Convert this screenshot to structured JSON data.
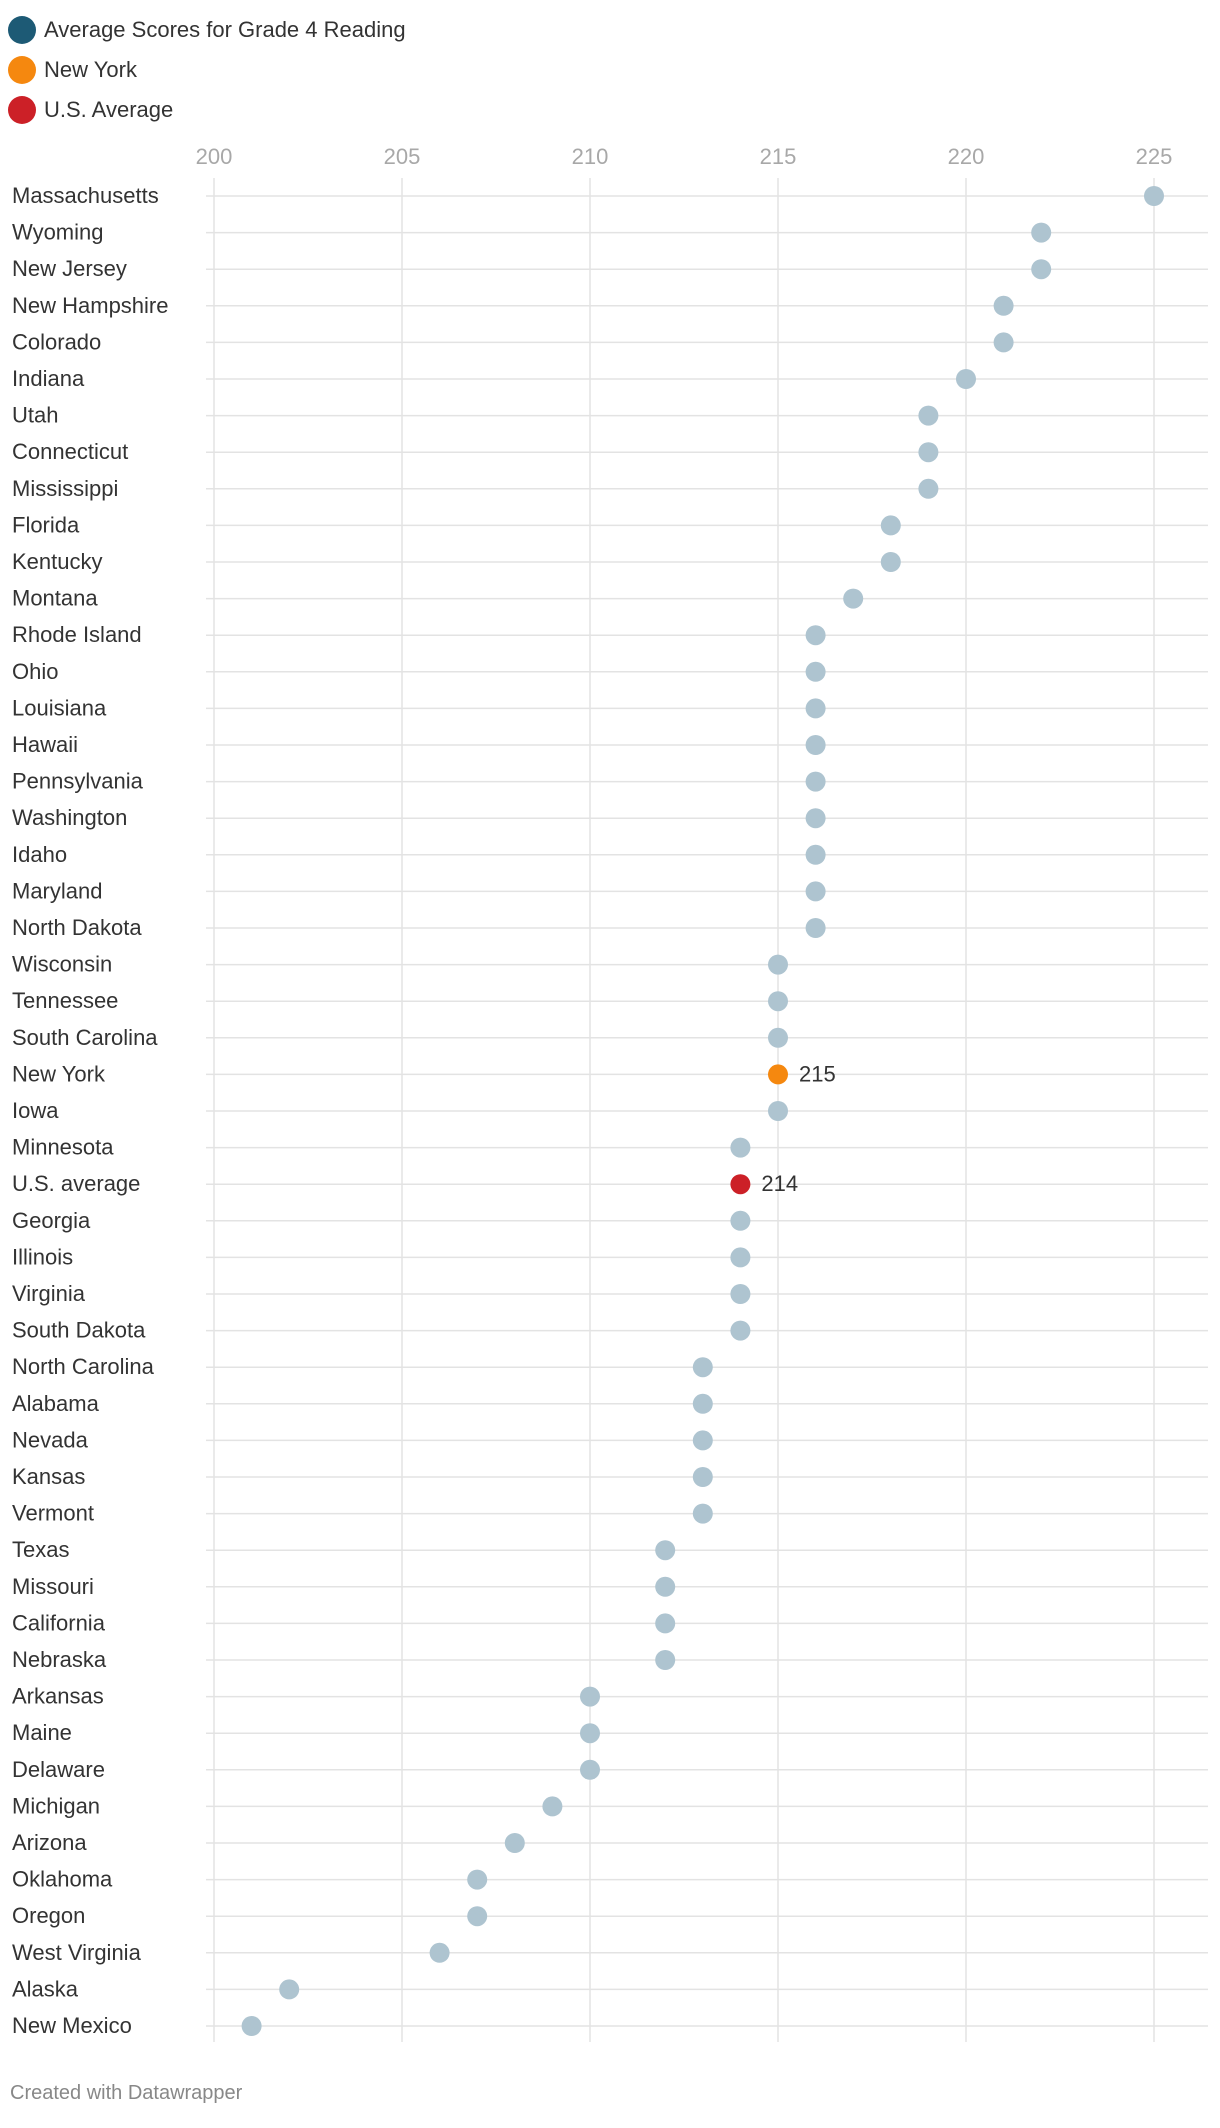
{
  "legend": [
    {
      "label": "Average Scores for Grade 4 Reading",
      "color": "#1d5a75"
    },
    {
      "label": "New York",
      "color": "#f5880f"
    },
    {
      "label": "U.S. Average",
      "color": "#cc2027"
    }
  ],
  "credit": "Created with Datawrapper",
  "colors": {
    "default_dot": "#aec4d0",
    "new_york": "#f5880f",
    "us_average": "#cc2027",
    "grid": "#e3e3e3",
    "tick_text": "#a8a8a8",
    "label_text": "#333333"
  },
  "chart_data": {
    "type": "scatter",
    "title": "Average Scores for Grade 4 Reading",
    "xlabel": "",
    "ylabel": "",
    "xlim": [
      200,
      226
    ],
    "xticks": [
      200,
      205,
      210,
      215,
      220,
      225
    ],
    "xtick_labels": [
      "200",
      "205",
      "210",
      "215",
      "220",
      "225"
    ],
    "categories": [
      "Massachusetts",
      "Wyoming",
      "New Jersey",
      "New Hampshire",
      "Colorado",
      "Indiana",
      "Utah",
      "Connecticut",
      "Mississippi",
      "Florida",
      "Kentucky",
      "Montana",
      "Rhode Island",
      "Ohio",
      "Louisiana",
      "Hawaii",
      "Pennsylvania",
      "Washington",
      "Idaho",
      "Maryland",
      "North Dakota",
      "Wisconsin",
      "Tennessee",
      "South Carolina",
      "New York",
      "Iowa",
      "Minnesota",
      "U.S. average",
      "Georgia",
      "Illinois",
      "Virginia",
      "South Dakota",
      "North Carolina",
      "Alabama",
      "Nevada",
      "Kansas",
      "Vermont",
      "Texas",
      "Missouri",
      "California",
      "Nebraska",
      "Arkansas",
      "Maine",
      "Delaware",
      "Michigan",
      "Arizona",
      "Oklahoma",
      "Oregon",
      "West Virginia",
      "Alaska",
      "New Mexico"
    ],
    "values": [
      225,
      222,
      222,
      221,
      221,
      220,
      219,
      219,
      219,
      218,
      218,
      217,
      216,
      216,
      216,
      216,
      216,
      216,
      216,
      216,
      216,
      215,
      215,
      215,
      215,
      215,
      214,
      214,
      214,
      214,
      214,
      214,
      213,
      213,
      213,
      213,
      213,
      212,
      212,
      212,
      212,
      210,
      210,
      210,
      209,
      208,
      207,
      207,
      206,
      202,
      201
    ],
    "highlights": [
      {
        "category": "New York",
        "color": "#f5880f",
        "label": "215"
      },
      {
        "category": "U.S. average",
        "color": "#cc2027",
        "label": "214"
      }
    ]
  }
}
